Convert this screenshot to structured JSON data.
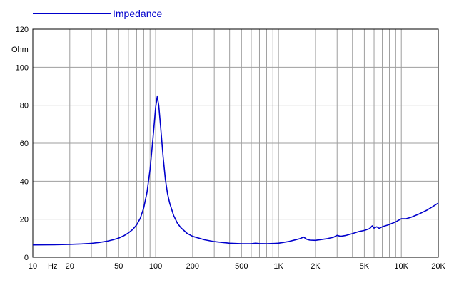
{
  "chart_data": {
    "type": "line",
    "title": "",
    "xlabel": "",
    "ylabel": "Ohm",
    "x_unit": "Hz",
    "x_scale": "log",
    "xlim": [
      10,
      20000
    ],
    "ylim": [
      0,
      120
    ],
    "grid": true,
    "legend_placement": "top-left",
    "colors": {
      "series": "#0000cc",
      "grid": "#9e9e9e",
      "axis": "#000000"
    },
    "x_ticks": [
      {
        "value": 10,
        "label": "10"
      },
      {
        "value": 20,
        "label": "20"
      },
      {
        "value": 50,
        "label": "50"
      },
      {
        "value": 100,
        "label": "100"
      },
      {
        "value": 200,
        "label": "200"
      },
      {
        "value": 500,
        "label": "500"
      },
      {
        "value": 1000,
        "label": "1K"
      },
      {
        "value": 2000,
        "label": "2K"
      },
      {
        "value": 5000,
        "label": "5K"
      },
      {
        "value": 10000,
        "label": "10K"
      },
      {
        "value": 20000,
        "label": "20K"
      }
    ],
    "y_ticks": [
      0,
      20,
      40,
      60,
      80,
      100,
      120
    ],
    "series": [
      {
        "name": "Impedance",
        "points": [
          [
            10,
            6.5
          ],
          [
            15,
            6.6
          ],
          [
            20,
            6.8
          ],
          [
            25,
            7.0
          ],
          [
            30,
            7.3
          ],
          [
            35,
            7.8
          ],
          [
            40,
            8.4
          ],
          [
            45,
            9.2
          ],
          [
            50,
            10.1
          ],
          [
            55,
            11.3
          ],
          [
            60,
            12.8
          ],
          [
            65,
            14.6
          ],
          [
            70,
            17.0
          ],
          [
            75,
            20.5
          ],
          [
            80,
            26.0
          ],
          [
            85,
            34.0
          ],
          [
            90,
            46.0
          ],
          [
            95,
            62.0
          ],
          [
            100,
            79.0
          ],
          [
            103,
            84.5
          ],
          [
            106,
            80.0
          ],
          [
            110,
            68.0
          ],
          [
            115,
            53.0
          ],
          [
            120,
            41.0
          ],
          [
            125,
            33.5
          ],
          [
            130,
            28.5
          ],
          [
            140,
            22.0
          ],
          [
            150,
            18.0
          ],
          [
            160,
            15.6
          ],
          [
            180,
            12.6
          ],
          [
            200,
            11.0
          ],
          [
            250,
            9.2
          ],
          [
            300,
            8.2
          ],
          [
            400,
            7.4
          ],
          [
            500,
            7.1
          ],
          [
            600,
            7.1
          ],
          [
            650,
            7.4
          ],
          [
            700,
            7.2
          ],
          [
            800,
            7.1
          ],
          [
            1000,
            7.4
          ],
          [
            1200,
            8.2
          ],
          [
            1400,
            9.3
          ],
          [
            1500,
            9.8
          ],
          [
            1600,
            10.6
          ],
          [
            1700,
            9.4
          ],
          [
            1800,
            9.0
          ],
          [
            2000,
            8.9
          ],
          [
            2500,
            9.8
          ],
          [
            2800,
            10.5
          ],
          [
            3000,
            11.5
          ],
          [
            3200,
            11.0
          ],
          [
            3500,
            11.4
          ],
          [
            4000,
            12.4
          ],
          [
            4500,
            13.5
          ],
          [
            5000,
            14.1
          ],
          [
            5500,
            15.0
          ],
          [
            5800,
            16.5
          ],
          [
            6000,
            15.3
          ],
          [
            6300,
            16.0
          ],
          [
            6600,
            15.2
          ],
          [
            7000,
            16.0
          ],
          [
            8000,
            17.2
          ],
          [
            9000,
            18.6
          ],
          [
            10000,
            20.2
          ],
          [
            11000,
            20.3
          ],
          [
            12000,
            21.0
          ],
          [
            14000,
            22.8
          ],
          [
            16000,
            24.6
          ],
          [
            18000,
            26.6
          ],
          [
            20000,
            28.5
          ]
        ]
      }
    ]
  }
}
